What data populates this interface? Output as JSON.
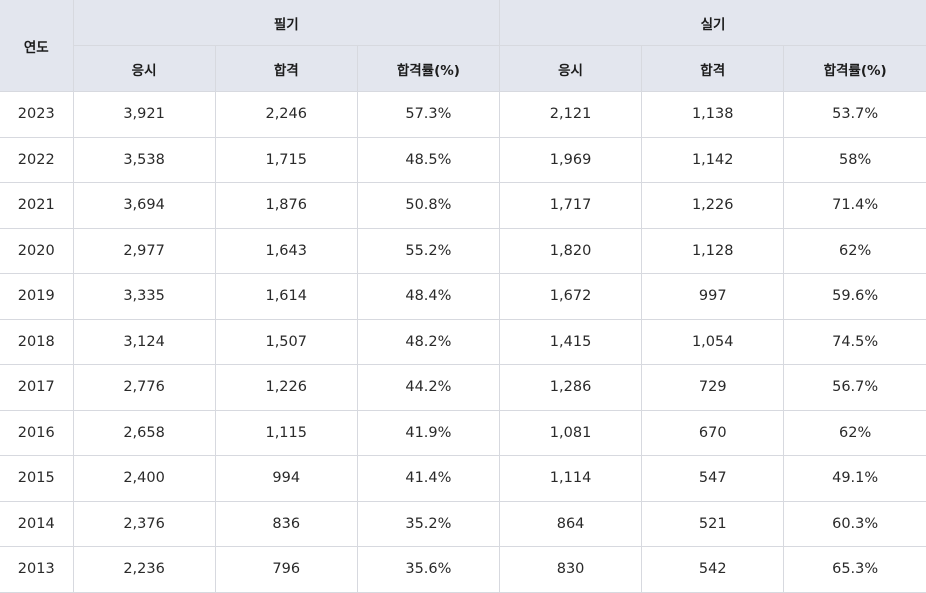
{
  "header": {
    "year_label": "연도",
    "written_label": "필기",
    "practical_label": "실기",
    "written_cols": [
      "응시",
      "합격",
      "합격률(%)"
    ],
    "practical_cols": [
      "응시",
      "합격",
      "합격률(%)"
    ]
  },
  "rows": [
    [
      "2023",
      "3,921",
      "2,246",
      "57.3%",
      "2,121",
      "1,138",
      "53.7%"
    ],
    [
      "2022",
      "3,538",
      "1,715",
      "48.5%",
      "1,969",
      "1,142",
      "58%"
    ],
    [
      "2021",
      "3,694",
      "1,876",
      "50.8%",
      "1,717",
      "1,226",
      "71.4%"
    ],
    [
      "2020",
      "2,977",
      "1,643",
      "55.2%",
      "1,820",
      "1,128",
      "62%"
    ],
    [
      "2019",
      "3,335",
      "1,614",
      "48.4%",
      "1,672",
      "997",
      "59.6%"
    ],
    [
      "2018",
      "3,124",
      "1,507",
      "48.2%",
      "1,415",
      "1,054",
      "74.5%"
    ],
    [
      "2017",
      "2,776",
      "1,226",
      "44.2%",
      "1,286",
      "729",
      "56.7%"
    ],
    [
      "2016",
      "2,658",
      "1,115",
      "41.9%",
      "1,081",
      "670",
      "62%"
    ],
    [
      "2015",
      "2,400",
      "994",
      "41.4%",
      "1,114",
      "547",
      "49.1%"
    ],
    [
      "2014",
      "2,376",
      "836",
      "35.2%",
      "864",
      "521",
      "60.3%"
    ],
    [
      "2013",
      "2,236",
      "796",
      "35.6%",
      "830",
      "542",
      "65.3%"
    ]
  ],
  "colors": {
    "header_bg": "#e3e6ee",
    "border": "#d7d9df",
    "text": "#2a2a2a"
  }
}
